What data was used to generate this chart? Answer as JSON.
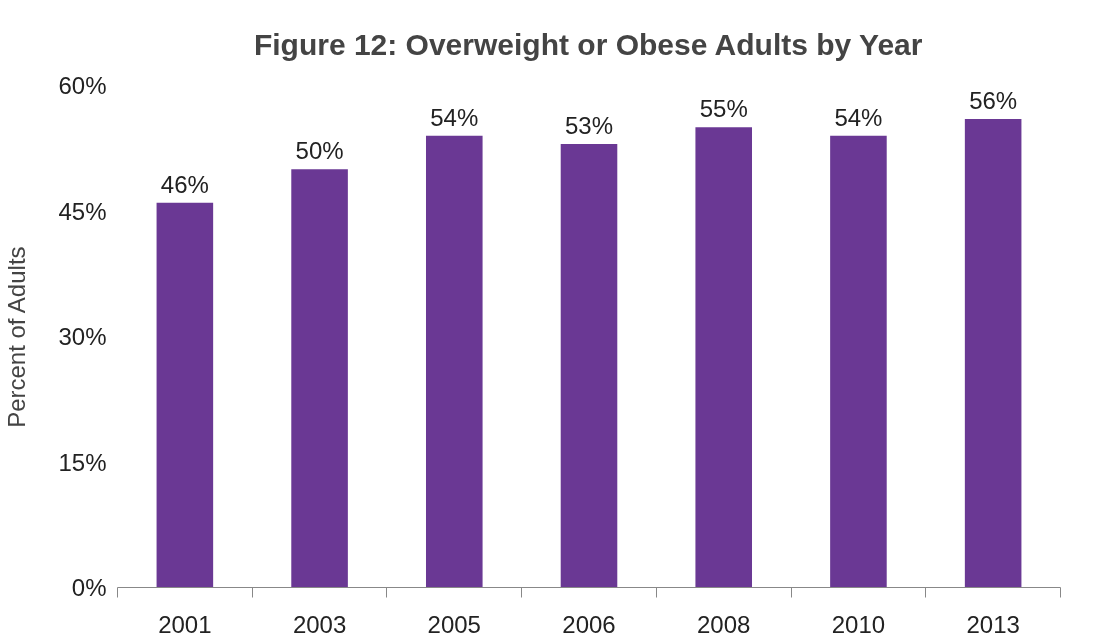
{
  "chart_data": {
    "type": "bar",
    "title": "Figure 12: Overweight or Obese Adults by Year",
    "ylabel": "Percent of Adults",
    "categories": [
      "2001",
      "2003",
      "2005",
      "2006",
      "2008",
      "2010",
      "2013"
    ],
    "values": [
      46,
      50,
      54,
      53,
      55,
      54,
      56
    ],
    "value_labels": [
      "46%",
      "50%",
      "54%",
      "53%",
      "55%",
      "54%",
      "56%"
    ],
    "color": "#6a3894",
    "ylim": [
      0,
      60
    ],
    "yticks": [
      {
        "value": 0,
        "label": "0%"
      },
      {
        "value": 15,
        "label": "15%"
      },
      {
        "value": 30,
        "label": "30%"
      },
      {
        "value": 45,
        "label": "45%"
      },
      {
        "value": 60,
        "label": "60%"
      }
    ]
  }
}
